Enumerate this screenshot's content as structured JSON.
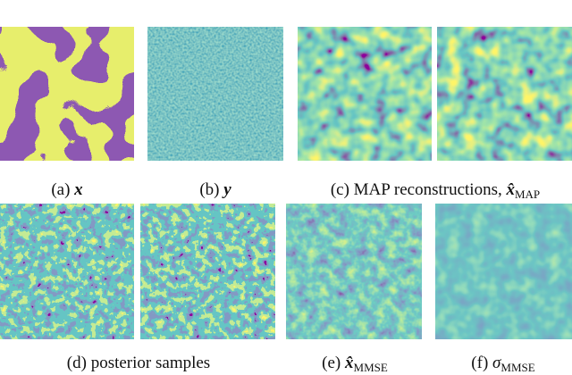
{
  "figure": {
    "captions": [
      {
        "label": "(a)",
        "symbol": "x"
      },
      {
        "label": "(b)",
        "symbol": "y"
      },
      {
        "label": "(c) MAP reconstructions,",
        "symbol": "x̂",
        "subscript": "MAP"
      },
      {
        "label": "(d) posterior samples"
      },
      {
        "label": "(e)",
        "symbol": "x̂",
        "subscript": "MMSE"
      },
      {
        "label": "(f)",
        "symbol": "σ",
        "subscript": "MMSE"
      }
    ]
  }
}
